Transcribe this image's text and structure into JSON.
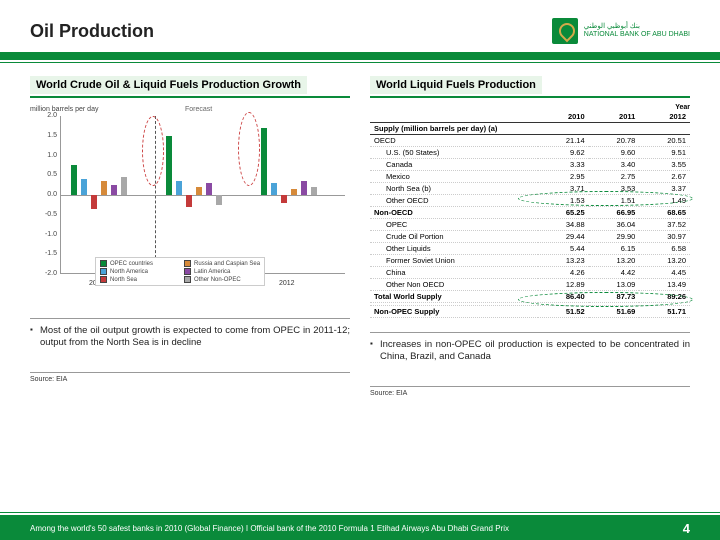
{
  "header": {
    "title": "Oil Production",
    "bank_line1": "NATIONAL BANK OF ABU DHABI",
    "bank_line2": "بنك أبوظبي الوطني"
  },
  "left": {
    "title": "World Crude Oil & Liquid Fuels Production Growth",
    "ylabel": "million barrels per day",
    "forecast_label": "Forecast",
    "yticks": [
      "2.0",
      "1.5",
      "1.0",
      "0.5",
      "0.0",
      "-0.5",
      "-1.0",
      "-1.5",
      "-2.0"
    ],
    "years": [
      "2010",
      "2011",
      "2012"
    ],
    "colors": {
      "opec": "#0a8a3a",
      "na": "#4aa3d8",
      "nsea": "#c43a3a",
      "rus": "#d68a3a",
      "latin": "#8a4aa3",
      "other": "#a8a8a8"
    },
    "legend": [
      {
        "k": "opec",
        "t": "OPEC countries"
      },
      {
        "k": "rus",
        "t": "Russia and Caspian Sea"
      },
      {
        "k": "na",
        "t": "North America"
      },
      {
        "k": "latin",
        "t": "Latin America"
      },
      {
        "k": "nsea",
        "t": "North Sea"
      },
      {
        "k": "other",
        "t": "Other Non-OPEC"
      }
    ],
    "bars_2010": [
      {
        "k": "opec",
        "v": 0.75
      },
      {
        "k": "na",
        "v": 0.4
      },
      {
        "k": "nsea",
        "v": -0.35
      },
      {
        "k": "rus",
        "v": 0.35
      },
      {
        "k": "latin",
        "v": 0.25
      },
      {
        "k": "other",
        "v": 0.45
      }
    ],
    "bars_2011": [
      {
        "k": "opec",
        "v": 1.5
      },
      {
        "k": "na",
        "v": 0.35
      },
      {
        "k": "nsea",
        "v": -0.3
      },
      {
        "k": "rus",
        "v": 0.2
      },
      {
        "k": "latin",
        "v": 0.3
      },
      {
        "k": "other",
        "v": -0.25
      }
    ],
    "bars_2012": [
      {
        "k": "opec",
        "v": 1.7
      },
      {
        "k": "na",
        "v": 0.3
      },
      {
        "k": "nsea",
        "v": -0.2
      },
      {
        "k": "rus",
        "v": 0.15
      },
      {
        "k": "latin",
        "v": 0.35
      },
      {
        "k": "other",
        "v": 0.2
      }
    ],
    "bullet": "Most of the oil output growth is expected to come from OPEC in 2011-12; output from the North Sea is in decline",
    "source": "Source: EIA"
  },
  "right": {
    "title": "World Liquid Fuels Production",
    "year_label": "Year",
    "cols": [
      "",
      "2010",
      "2011",
      "2012"
    ],
    "supply_header": "Supply (million barrels per day) (a)",
    "rows": [
      {
        "c": [
          "OECD",
          "21.14",
          "20.78",
          "20.51"
        ],
        "cls": ""
      },
      {
        "c": [
          "U.S. (50 States)",
          "9.62",
          "9.60",
          "9.51"
        ],
        "cls": "indent"
      },
      {
        "c": [
          "Canada",
          "3.33",
          "3.40",
          "3.55"
        ],
        "cls": "indent"
      },
      {
        "c": [
          "Mexico",
          "2.95",
          "2.75",
          "2.67"
        ],
        "cls": "indent"
      },
      {
        "c": [
          "North Sea (b)",
          "3.71",
          "3.53",
          "3.37"
        ],
        "cls": "indent"
      },
      {
        "c": [
          "Other OECD",
          "1.53",
          "1.51",
          "1.49"
        ],
        "cls": "indent"
      },
      {
        "c": [
          "Non-OECD",
          "65.25",
          "66.95",
          "68.65"
        ],
        "cls": "bold"
      },
      {
        "c": [
          "OPEC",
          "34.88",
          "36.04",
          "37.52"
        ],
        "cls": "indent"
      },
      {
        "c": [
          "Crude Oil Portion",
          "29.44",
          "29.90",
          "30.97"
        ],
        "cls": "indent"
      },
      {
        "c": [
          "Other Liquids",
          "5.44",
          "6.15",
          "6.58"
        ],
        "cls": "indent"
      },
      {
        "c": [
          "Former Soviet Union",
          "13.23",
          "13.20",
          "13.20"
        ],
        "cls": "indent"
      },
      {
        "c": [
          "China",
          "4.26",
          "4.42",
          "4.45"
        ],
        "cls": "indent"
      },
      {
        "c": [
          "Other Non OECD",
          "12.89",
          "13.09",
          "13.49"
        ],
        "cls": "indent"
      },
      {
        "c": [
          "Total World Supply",
          "86.40",
          "87.73",
          "89.26"
        ],
        "cls": "bold"
      },
      {
        "c": [
          "",
          "",
          "",
          ""
        ],
        "cls": ""
      },
      {
        "c": [
          "Non-OPEC Supply",
          "51.52",
          "51.69",
          "51.71"
        ],
        "cls": "bold"
      }
    ],
    "bullet": "Increases in non-OPEC oil production is expected to be concentrated in China, Brazil, and Canada",
    "source": "Source: EIA"
  },
  "footer": {
    "text": "Among the world's 50 safest banks in 2010 (Global Finance) I Official bank of the 2010 Formula 1 Etihad Airways Abu Dhabi Grand Prix",
    "page": "4"
  }
}
